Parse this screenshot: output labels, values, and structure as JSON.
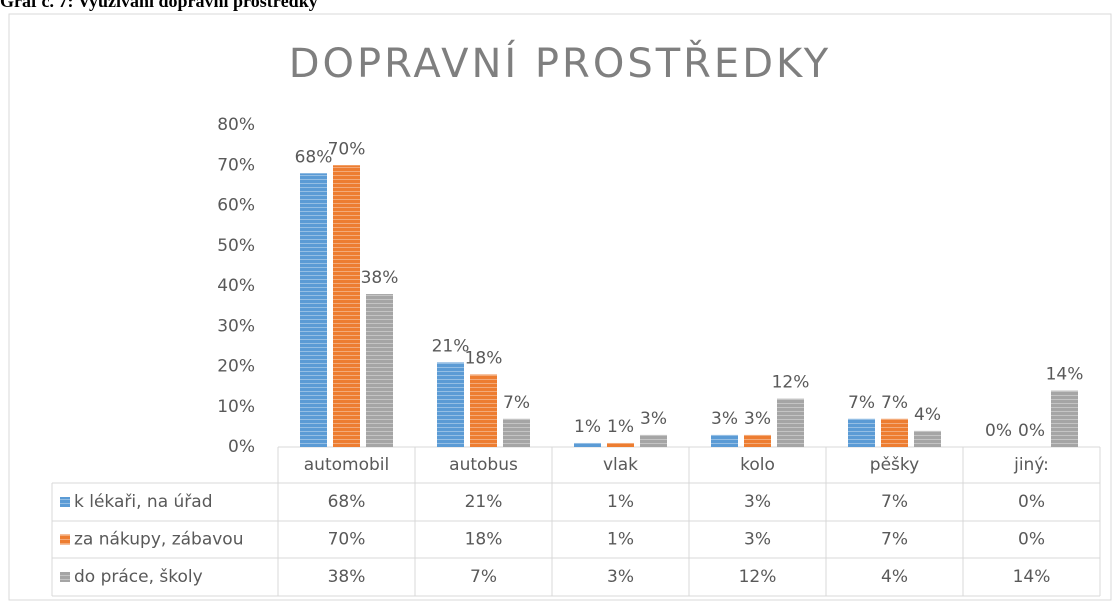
{
  "caption": "Graf č. 7: Využívání dopravní prostředky",
  "chart_data": {
    "type": "bar",
    "title": "DOPRAVNÍ PROSTŘEDKY",
    "categories": [
      "automobil",
      "autobus",
      "vlak",
      "kolo",
      "pěšky",
      "jiný:"
    ],
    "series": [
      {
        "name": "k lékaři, na úřad",
        "color": "#5b9bd5",
        "values": [
          68,
          21,
          1,
          3,
          7,
          0
        ],
        "value_labels": [
          "68%",
          "21%",
          "1%",
          "3%",
          "7%",
          "0%"
        ]
      },
      {
        "name": "za nákupy, zábavou",
        "color": "#ed7d31",
        "values": [
          70,
          18,
          1,
          3,
          7,
          0
        ],
        "value_labels": [
          "70%",
          "18%",
          "1%",
          "3%",
          "7%",
          "0%"
        ]
      },
      {
        "name": "do práce, školy",
        "color": "#a5a5a5",
        "values": [
          38,
          7,
          3,
          12,
          4,
          14
        ],
        "value_labels": [
          "38%",
          "7%",
          "3%",
          "12%",
          "4%",
          "14%"
        ]
      }
    ],
    "ylim": [
      0,
      80
    ],
    "yticks": [
      {
        "value": 0,
        "label": "0%"
      },
      {
        "value": 10,
        "label": "10%"
      },
      {
        "value": 20,
        "label": "20%"
      },
      {
        "value": 30,
        "label": "30%"
      },
      {
        "value": 40,
        "label": "40%"
      },
      {
        "value": 50,
        "label": "50%"
      },
      {
        "value": 60,
        "label": "60%"
      },
      {
        "value": 70,
        "label": "70%"
      },
      {
        "value": 80,
        "label": "80%"
      }
    ],
    "grid": false,
    "data_table": true
  }
}
